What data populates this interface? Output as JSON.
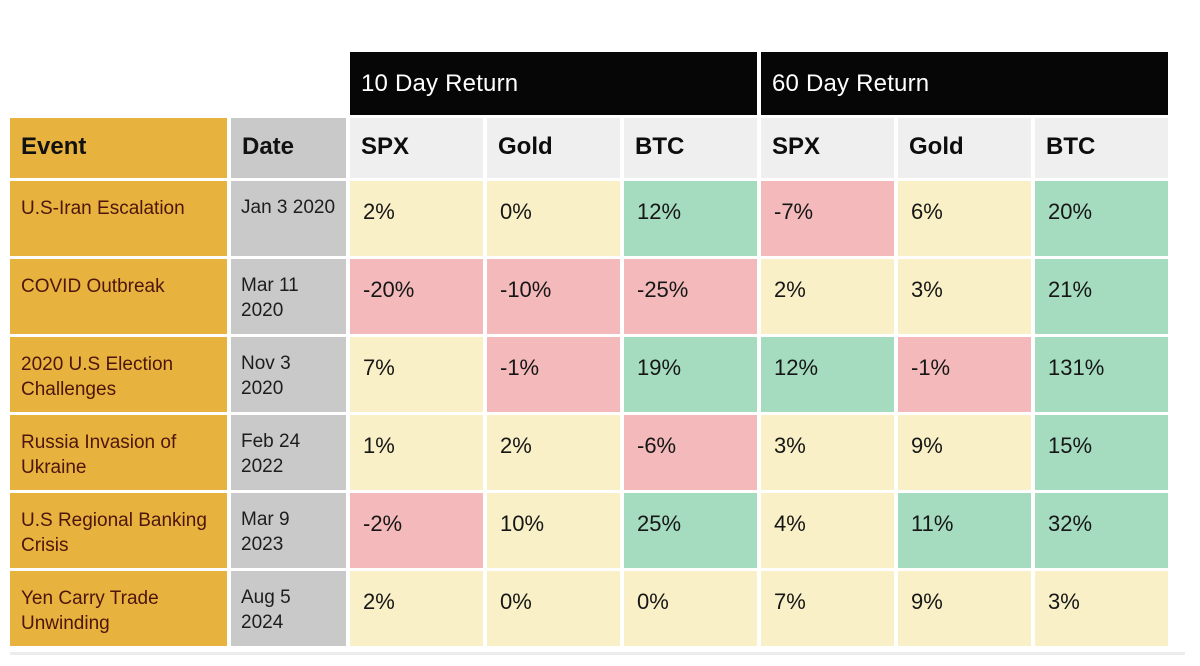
{
  "palette": {
    "gold": "#E7B33E",
    "date_gray": "#C9C9C9",
    "header_gray": "#EFEFEF",
    "neutral_yellow": "#F9F0C7",
    "negative_pink": "#F3B9BB",
    "positive_green": "#A5DCC0",
    "bar_black": "#060606",
    "event_text": "#4D150B"
  },
  "chart_data": {
    "type": "table",
    "group_headers": [
      "10 Day Return",
      "60 Day Return"
    ],
    "event_header": "Event",
    "date_header": "Date",
    "metric_columns": [
      "SPX",
      "Gold",
      "BTC",
      "SPX",
      "Gold",
      "BTC"
    ],
    "rows": [
      {
        "event": "U.S-Iran Escalation",
        "date": "Jan 3 2020",
        "cells": [
          {
            "label": "2%",
            "pct": 2,
            "tone": "yellow"
          },
          {
            "label": "0%",
            "pct": 0,
            "tone": "yellow"
          },
          {
            "label": "12%",
            "pct": 12,
            "tone": "green"
          },
          {
            "label": "-7%",
            "pct": -7,
            "tone": "pink"
          },
          {
            "label": "6%",
            "pct": 6,
            "tone": "yellow"
          },
          {
            "label": "20%",
            "pct": 20,
            "tone": "green"
          }
        ]
      },
      {
        "event": "COVID Outbreak",
        "date": "Mar 11 2020",
        "cells": [
          {
            "label": "-20%",
            "pct": -20,
            "tone": "pink"
          },
          {
            "label": "-10%",
            "pct": -10,
            "tone": "pink"
          },
          {
            "label": "-25%",
            "pct": -25,
            "tone": "pink"
          },
          {
            "label": "2%",
            "pct": 2,
            "tone": "yellow"
          },
          {
            "label": "3%",
            "pct": 3,
            "tone": "yellow"
          },
          {
            "label": "21%",
            "pct": 21,
            "tone": "green"
          }
        ]
      },
      {
        "event": "2020 U.S Election Challenges",
        "date": "Nov 3 2020",
        "cells": [
          {
            "label": "7%",
            "pct": 7,
            "tone": "yellow"
          },
          {
            "label": "-1%",
            "pct": -1,
            "tone": "pink"
          },
          {
            "label": "19%",
            "pct": 19,
            "tone": "green"
          },
          {
            "label": "12%",
            "pct": 12,
            "tone": "green"
          },
          {
            "label": "-1%",
            "pct": -1,
            "tone": "pink"
          },
          {
            "label": "131%",
            "pct": 131,
            "tone": "green"
          }
        ]
      },
      {
        "event": "Russia Invasion of Ukraine",
        "date": "Feb 24 2022",
        "cells": [
          {
            "label": "1%",
            "pct": 1,
            "tone": "yellow"
          },
          {
            "label": "2%",
            "pct": 2,
            "tone": "yellow"
          },
          {
            "label": "-6%",
            "pct": -6,
            "tone": "pink"
          },
          {
            "label": "3%",
            "pct": 3,
            "tone": "yellow"
          },
          {
            "label": "9%",
            "pct": 9,
            "tone": "yellow"
          },
          {
            "label": "15%",
            "pct": 15,
            "tone": "green"
          }
        ]
      },
      {
        "event": "U.S Regional Banking Crisis",
        "date": "Mar 9 2023",
        "cells": [
          {
            "label": "-2%",
            "pct": -2,
            "tone": "pink"
          },
          {
            "label": "10%",
            "pct": 10,
            "tone": "yellow"
          },
          {
            "label": "25%",
            "pct": 25,
            "tone": "green"
          },
          {
            "label": "4%",
            "pct": 4,
            "tone": "yellow"
          },
          {
            "label": "11%",
            "pct": 11,
            "tone": "green"
          },
          {
            "label": "32%",
            "pct": 32,
            "tone": "green"
          }
        ]
      },
      {
        "event": "Yen Carry Trade Unwinding",
        "date": "Aug 5 2024",
        "cells": [
          {
            "label": "2%",
            "pct": 2,
            "tone": "yellow"
          },
          {
            "label": "0%",
            "pct": 0,
            "tone": "yellow"
          },
          {
            "label": "0%",
            "pct": 0,
            "tone": "yellow"
          },
          {
            "label": "7%",
            "pct": 7,
            "tone": "yellow"
          },
          {
            "label": "9%",
            "pct": 9,
            "tone": "yellow"
          },
          {
            "label": "3%",
            "pct": 3,
            "tone": "yellow"
          }
        ]
      }
    ]
  }
}
